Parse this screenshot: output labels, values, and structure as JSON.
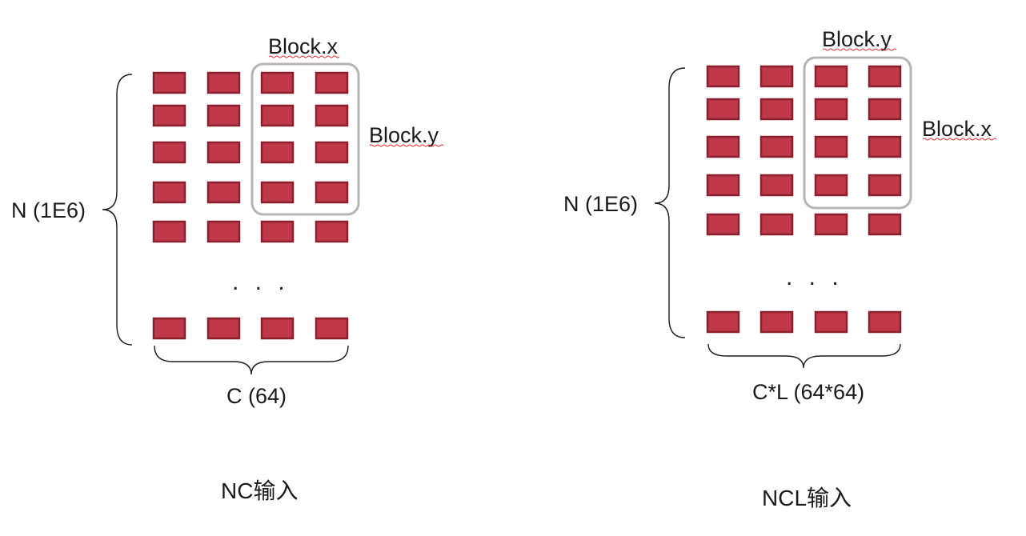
{
  "panels": [
    {
      "id": "nc",
      "row_label": "N (1E6)",
      "col_label": "C (64)",
      "block_top_label": "Block.x",
      "block_side_label": "Block.y",
      "ellipsis": ". . .",
      "caption": "NC输入"
    },
    {
      "id": "ncl",
      "row_label": "N (1E6)",
      "col_label": "C*L (64*64)",
      "block_top_label": "Block.y",
      "block_side_label": "Block.x",
      "ellipsis": ". . .",
      "caption": "NCL输入"
    }
  ],
  "colors": {
    "cell_fill": "#c0394b",
    "cell_border": "#8a1f2e",
    "block_outline": "#b5b5b5"
  }
}
